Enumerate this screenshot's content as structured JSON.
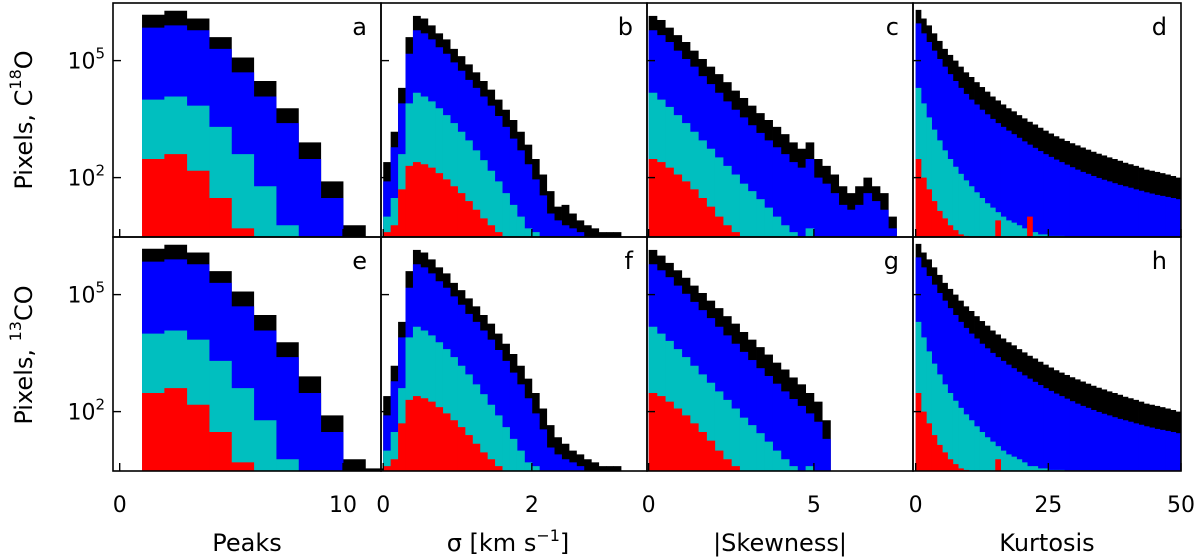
{
  "chart_data": {
    "type": "bar",
    "y_scale": "log",
    "ylim": [
      3,
      3000000
    ],
    "y_ticks": [
      {
        "value": 100,
        "mantissa": "10",
        "exp": "2"
      },
      {
        "value": 100000,
        "mantissa": "10",
        "exp": "5"
      }
    ],
    "colors": {
      "black": "#000000",
      "blue": "#0000ff",
      "cyan": "#00bfbf",
      "red": "#ff0000"
    },
    "rows": [
      {
        "label": "Pixels,",
        "isotope": "C",
        "isotope_sup": "18",
        "isotope_suffix": "O"
      },
      {
        "label": "Pixels,",
        "isotope": "",
        "isotope_sup": "13",
        "isotope_suffix": "CO"
      }
    ],
    "columns": [
      {
        "xlabel": "Peaks",
        "xlim": [
          -0.3,
          11.7
        ],
        "x_ticks": [
          {
            "value": 0,
            "label": "0"
          },
          {
            "value": 10,
            "label": "10"
          }
        ]
      },
      {
        "xlabel": "σ [km s⁻¹]",
        "xlim": [
          -0.03,
          3.55
        ],
        "x_ticks": [
          {
            "value": 0,
            "label": "0"
          },
          {
            "value": 2,
            "label": "2"
          }
        ]
      },
      {
        "xlabel": "|Skewness|",
        "xlim": [
          -0.05,
          8.0
        ],
        "x_ticks": [
          {
            "value": 0,
            "label": "0"
          },
          {
            "value": 5,
            "label": "5"
          }
        ]
      },
      {
        "xlabel": "Kurtosis",
        "xlim": [
          -0.5,
          50
        ],
        "x_ticks": [
          {
            "value": 0,
            "label": "0"
          },
          {
            "value": 25,
            "label": "25"
          },
          {
            "value": 50,
            "label": "50"
          }
        ]
      }
    ],
    "panels": [
      {
        "letter": "a",
        "row": 0,
        "col": 0,
        "x_start": 1.0,
        "bin_width": 1.0,
        "black": [
          1500000,
          1900000,
          1200000,
          400000,
          120000,
          30000,
          6000,
          800,
          80,
          6
        ],
        "blue": [
          700000,
          800000,
          600000,
          200000,
          50000,
          12000,
          2500,
          300,
          30
        ],
        "cyan": [
          10000,
          12000,
          7000,
          2000,
          400,
          60,
          6
        ],
        "red": [
          300,
          400,
          150,
          30,
          5
        ]
      },
      {
        "letter": "b",
        "row": 0,
        "col": 1,
        "x_start": 0.0,
        "bin_width": 0.1,
        "black": [
          250,
          1500,
          20000,
          400000,
          1400000,
          1200000,
          800000,
          500000,
          350000,
          200000,
          130000,
          80000,
          50000,
          30000,
          18000,
          10000,
          5500,
          3000,
          1500,
          700,
          300,
          120,
          45,
          18,
          20,
          12,
          8,
          6,
          5,
          4,
          4,
          4,
          3
        ],
        "blue": [
          80,
          600,
          8000,
          150000,
          600000,
          500000,
          350000,
          220000,
          150000,
          90000,
          55000,
          32000,
          20000,
          12000,
          7000,
          3800,
          2000,
          1000,
          500,
          220,
          90,
          35,
          12,
          8,
          6,
          5,
          4,
          3,
          3,
          3
        ],
        "cyan": [
          10,
          30,
          400,
          8000,
          15000,
          12000,
          9000,
          6000,
          4000,
          2500,
          1500,
          900,
          500,
          280,
          150,
          80,
          40,
          20,
          10,
          5,
          4,
          3
        ],
        "red": [
          4,
          6,
          50,
          200,
          250,
          220,
          180,
          130,
          90,
          60,
          40,
          25,
          15,
          9,
          6,
          4
        ]
      },
      {
        "letter": "c",
        "row": 0,
        "col": 2,
        "x_start": 0.0,
        "bin_width": 0.25,
        "black": [
          1400000,
          1100000,
          700000,
          450000,
          300000,
          180000,
          110000,
          70000,
          45000,
          28000,
          17000,
          11000,
          7000,
          4500,
          3000,
          2000,
          1300,
          800,
          550,
          800,
          300,
          200,
          120,
          60,
          40,
          60,
          100,
          60,
          40,
          10
        ],
        "blue": [
          600000,
          450000,
          300000,
          180000,
          110000,
          70000,
          40000,
          25000,
          15000,
          9000,
          5500,
          3500,
          2200,
          1400,
          900,
          600,
          400,
          250,
          180,
          300,
          100,
          70,
          40,
          20,
          15,
          20,
          40,
          25,
          15,
          5
        ],
        "cyan": [
          15000,
          10000,
          6500,
          4000,
          2500,
          1500,
          900,
          550,
          330,
          200,
          120,
          70,
          45,
          28,
          17,
          10,
          6,
          4,
          3,
          5
        ],
        "red": [
          300,
          250,
          180,
          120,
          80,
          50,
          30,
          18,
          10,
          6,
          4
        ]
      },
      {
        "letter": "d",
        "row": 0,
        "col": 3,
        "x_start": 0.0,
        "bin_width": 1.0,
        "black": [
          2000000,
          1200000,
          800000,
          500000,
          320000,
          200000,
          140000,
          100000,
          70000,
          50000,
          38000,
          28000,
          21000,
          16000,
          12000,
          9500,
          7500,
          6000,
          5000,
          4000,
          3300,
          2700,
          2300,
          1900,
          1600,
          1350,
          1150,
          1000,
          870,
          760,
          670,
          590,
          520,
          460,
          410,
          370,
          330,
          300,
          270,
          240,
          220,
          200,
          180,
          160,
          150,
          140,
          130,
          120,
          110,
          100
        ],
        "blue": [
          900000,
          500000,
          300000,
          180000,
          110000,
          70000,
          45000,
          30000,
          20000,
          14000,
          10000,
          7500,
          5500,
          4200,
          3200,
          2500,
          2000,
          1600,
          1300,
          1050,
          850,
          700,
          580,
          480,
          400,
          340,
          290,
          250,
          215,
          185,
          160,
          140,
          125,
          110,
          98,
          88,
          80,
          72,
          65,
          60,
          55,
          50,
          46,
          42,
          39,
          36,
          34,
          32,
          30,
          28
        ],
        "cyan": [
          20000,
          8000,
          3500,
          1700,
          900,
          500,
          300,
          190,
          125,
          85,
          60,
          42,
          30,
          22,
          17,
          13,
          10,
          8,
          7,
          6,
          5,
          4,
          4,
          3.5,
          3.5,
          3.2,
          3.2,
          3.2,
          3.1,
          3.1,
          3.1,
          3.1,
          3.1
        ],
        "red": [
          300,
          100,
          50,
          25,
          14,
          9,
          6,
          4.5,
          3.5,
          3.2,
          3.1,
          3.1,
          3.1,
          3.1,
          3.1,
          8,
          3.1,
          3.1,
          3.1,
          3.1,
          3.1,
          10,
          3.1,
          3.1,
          3.1,
          3.1,
          3.1,
          3.1,
          3.1,
          3.1,
          3.1,
          3.1,
          3.1,
          3.1,
          3.1,
          3.1,
          3.1,
          3.1,
          3.1,
          3.1,
          3.1,
          3.1,
          3.1,
          3.1,
          3.1,
          3.1,
          3.1,
          3.1,
          3.1,
          3.1
        ]
      },
      {
        "letter": "e",
        "row": 1,
        "col": 0,
        "x_start": 1.0,
        "bin_width": 1.0,
        "black": [
          1500000,
          1900000,
          1200000,
          400000,
          120000,
          30000,
          6000,
          800,
          80,
          6,
          3.5
        ],
        "blue": [
          700000,
          800000,
          600000,
          200000,
          50000,
          12000,
          2500,
          300,
          30
        ],
        "cyan": [
          10000,
          12000,
          7000,
          2000,
          400,
          60,
          6
        ],
        "red": [
          300,
          400,
          150,
          30,
          5
        ]
      },
      {
        "letter": "f",
        "row": 1,
        "col": 1,
        "x_start": 0.0,
        "bin_width": 0.1,
        "black": [
          250,
          1500,
          20000,
          400000,
          1400000,
          1200000,
          800000,
          500000,
          350000,
          200000,
          130000,
          80000,
          50000,
          30000,
          18000,
          10000,
          5500,
          3000,
          1500,
          700,
          300,
          120,
          45,
          22,
          15,
          10,
          8,
          6,
          5,
          4,
          4,
          4,
          3
        ],
        "blue": [
          80,
          600,
          8000,
          150000,
          600000,
          500000,
          350000,
          220000,
          150000,
          90000,
          55000,
          32000,
          20000,
          12000,
          7000,
          3800,
          2000,
          1000,
          500,
          220,
          90,
          35,
          12,
          8,
          6,
          5,
          4,
          3,
          3,
          3
        ],
        "cyan": [
          10,
          30,
          400,
          8000,
          15000,
          12000,
          9000,
          6000,
          4000,
          2500,
          1500,
          900,
          500,
          280,
          150,
          80,
          40,
          20,
          10,
          5,
          4,
          3
        ],
        "red": [
          4,
          6,
          50,
          200,
          250,
          220,
          180,
          130,
          90,
          60,
          40,
          25,
          15,
          9,
          6,
          4
        ]
      },
      {
        "letter": "g",
        "row": 1,
        "col": 2,
        "x_start": 0.0,
        "bin_width": 0.25,
        "black": [
          1400000,
          1000000,
          650000,
          420000,
          270000,
          170000,
          110000,
          70000,
          45000,
          28000,
          18000,
          11000,
          7000,
          4500,
          2900,
          1800,
          1200,
          750,
          500,
          300,
          180,
          60
        ],
        "blue": [
          600000,
          420000,
          280000,
          170000,
          105000,
          65000,
          40000,
          25000,
          15000,
          9000,
          5500,
          3400,
          2100,
          1300,
          820,
          520,
          330,
          210,
          140,
          90,
          55,
          20
        ],
        "cyan": [
          15000,
          10000,
          6500,
          4000,
          2500,
          1500,
          900,
          550,
          330,
          200,
          120,
          70,
          45,
          28,
          17,
          10,
          6,
          4,
          3,
          4
        ],
        "red": [
          300,
          250,
          180,
          120,
          80,
          50,
          30,
          18,
          10,
          6,
          4
        ]
      },
      {
        "letter": "h",
        "row": 1,
        "col": 3,
        "x_start": 0.0,
        "bin_width": 1.0,
        "black": [
          2000000,
          1200000,
          800000,
          500000,
          320000,
          200000,
          140000,
          100000,
          70000,
          50000,
          38000,
          28000,
          21000,
          16000,
          12000,
          9500,
          7500,
          6000,
          5000,
          4000,
          3300,
          2700,
          2300,
          1900,
          1600,
          1350,
          1150,
          1000,
          870,
          760,
          670,
          590,
          520,
          460,
          410,
          370,
          330,
          300,
          270,
          240,
          220,
          200,
          180,
          160,
          150,
          140,
          130,
          120,
          110,
          100
        ],
        "blue": [
          900000,
          500000,
          300000,
          180000,
          110000,
          70000,
          45000,
          30000,
          20000,
          14000,
          10000,
          7500,
          5500,
          4200,
          3200,
          2500,
          2000,
          1600,
          1300,
          1050,
          850,
          700,
          580,
          480,
          400,
          340,
          290,
          250,
          215,
          185,
          160,
          140,
          125,
          110,
          98,
          88,
          80,
          72,
          65,
          60,
          55,
          50,
          46,
          42,
          39,
          36,
          34,
          32,
          30,
          28
        ],
        "cyan": [
          20000,
          8000,
          3500,
          1700,
          900,
          500,
          300,
          190,
          125,
          85,
          60,
          42,
          30,
          22,
          17,
          13,
          10,
          8,
          7,
          6,
          5,
          4,
          4,
          3.5,
          3.5,
          3.2,
          3.2,
          3.2,
          3.1,
          3.1,
          3.1,
          3.1,
          3.1
        ],
        "red": [
          300,
          100,
          50,
          25,
          14,
          9,
          6,
          4.5,
          3.5,
          3.2,
          3.1,
          3.1,
          3.1,
          3.1,
          3.1,
          6,
          3.1,
          3.1,
          3.1,
          3.1,
          3.1,
          3.1,
          3.1,
          3.1,
          3.1,
          3.1,
          3.1,
          3.1,
          3.1,
          3.1,
          3.1,
          3.1,
          3.1,
          3.1,
          3.1,
          3.1,
          3.1,
          3.1,
          3.1,
          3.1,
          3.1,
          3.1,
          3.1,
          3.1,
          3.1,
          3.1,
          3.1,
          3.1,
          3.1,
          3.1
        ]
      }
    ]
  }
}
